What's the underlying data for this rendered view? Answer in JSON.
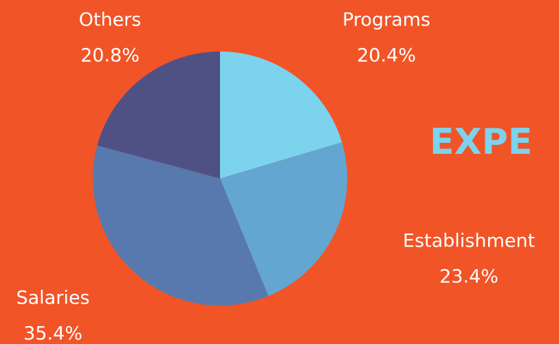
{
  "chart_data": {
    "type": "pie",
    "title": "EXPE",
    "categories": [
      "Programs",
      "Establishment",
      "Salaries",
      "Others"
    ],
    "values": [
      20.4,
      23.4,
      35.4,
      20.8
    ],
    "value_labels": [
      "20.4%",
      "23.4%",
      "35.4%",
      "20.8%"
    ],
    "colors": [
      "#7cd3ee",
      "#63a6d1",
      "#5879ad",
      "#4f5184"
    ],
    "background": "#f15427"
  }
}
